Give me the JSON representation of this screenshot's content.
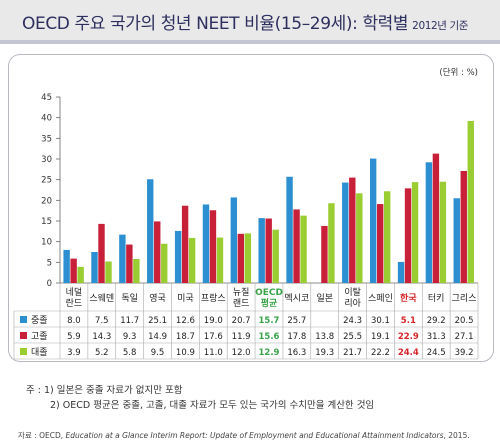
{
  "header": {
    "title": "OECD 주요 국가의 청년 NEET 비율(15–29세): 학력별",
    "year_note": "2012년 기준"
  },
  "chart_data": {
    "type": "bar",
    "unit_label": "(단위 : %)",
    "ylim": [
      0,
      45
    ],
    "yticks": [
      0,
      5,
      10,
      15,
      20,
      25,
      30,
      35,
      40,
      45
    ],
    "categories": [
      {
        "label": "네덜\n란드"
      },
      {
        "label": "스웨덴"
      },
      {
        "label": "독일"
      },
      {
        "label": "영국"
      },
      {
        "label": "미국"
      },
      {
        "label": "프랑스"
      },
      {
        "label": "뉴질\n랜드"
      },
      {
        "label": "OECD\n평균",
        "highlight": "#3aa34a"
      },
      {
        "label": "멕시코"
      },
      {
        "label": "일본"
      },
      {
        "label": "이탈\n리아"
      },
      {
        "label": "스페인"
      },
      {
        "label": "한국",
        "highlight": "#d7262b"
      },
      {
        "label": "터키"
      },
      {
        "label": "그리스"
      }
    ],
    "series": [
      {
        "name": "중졸",
        "color": "#2b8fd1",
        "values": [
          8.0,
          7.5,
          11.7,
          25.1,
          12.6,
          19.0,
          20.7,
          15.7,
          25.7,
          null,
          24.3,
          30.1,
          5.1,
          29.2,
          20.5
        ]
      },
      {
        "name": "고졸",
        "color": "#c9203a",
        "values": [
          5.9,
          14.3,
          9.3,
          14.9,
          18.7,
          17.6,
          11.9,
          15.6,
          17.8,
          13.8,
          25.5,
          19.1,
          22.9,
          31.3,
          27.1
        ]
      },
      {
        "name": "대졸",
        "color": "#9acd32",
        "values": [
          3.9,
          5.2,
          5.8,
          9.5,
          10.9,
          11.0,
          12.0,
          12.9,
          16.3,
          19.3,
          21.7,
          22.2,
          24.4,
          24.5,
          39.2
        ]
      }
    ],
    "table_values": [
      [
        "8.0",
        "7.5",
        "11.7",
        "25.1",
        "12.6",
        "19.0",
        "20.7",
        "15.7",
        "25.7",
        "",
        "24.3",
        "30.1",
        "5.1",
        "29.2",
        "20.5"
      ],
      [
        "5.9",
        "14.3",
        "9.3",
        "14.9",
        "18.7",
        "17.6",
        "11.9",
        "15.6",
        "17.8",
        "13.8",
        "25.5",
        "19.1",
        "22.9",
        "31.3",
        "27.1"
      ],
      [
        "3.9",
        "5.2",
        "5.8",
        "9.5",
        "10.9",
        "11.0",
        "12.0",
        "12.9",
        "16.3",
        "19.3",
        "21.7",
        "22.2",
        "24.4",
        "24.5",
        "39.2"
      ]
    ],
    "grid": false,
    "legend": "table-rows"
  },
  "notes": {
    "line1": "주 : 1) 일본은 중졸 자료가 없지만 포함",
    "line2": "2) OECD 평균은 중졸, 고졸, 대졸 자료가 모두 있는 국가의 수치만을 계산한 것임"
  },
  "source": {
    "prefix": "자료 : OECD, ",
    "title": "Education at a Glance Interim Report: Update of Employment and Educational Attainment Indicators",
    "suffix": ", 2015."
  }
}
